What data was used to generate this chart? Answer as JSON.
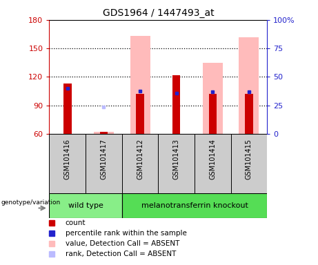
{
  "title": "GDS1964 / 1447493_at",
  "samples": [
    "GSM101416",
    "GSM101417",
    "GSM101412",
    "GSM101413",
    "GSM101414",
    "GSM101415"
  ],
  "ylim_left": [
    60,
    180
  ],
  "ylim_right": [
    0,
    100
  ],
  "yticks_left": [
    60,
    90,
    120,
    150,
    180
  ],
  "yticks_right": [
    0,
    25,
    50,
    75,
    100
  ],
  "yticklabels_right": [
    "0",
    "25",
    "50",
    "75",
    "100%"
  ],
  "bar_bottom": 60,
  "red_bars": {
    "GSM101416": 113,
    "GSM101417": 62,
    "GSM101412": 102,
    "GSM101413": 122,
    "GSM101414": 102,
    "GSM101415": 102
  },
  "pink_bars": {
    "GSM101416": null,
    "GSM101417": 62,
    "GSM101412": 163,
    "GSM101413": null,
    "GSM101414": 135,
    "GSM101415": 162
  },
  "blue_markers": {
    "GSM101416": 108,
    "GSM101417": null,
    "GSM101412": 105,
    "GSM101413": 103,
    "GSM101414": 104,
    "GSM101415": 104
  },
  "lightblue_markers": {
    "GSM101416": null,
    "GSM101417": 88,
    "GSM101412": 105,
    "GSM101413": null,
    "GSM101414": 104,
    "GSM101415": 104
  },
  "colors": {
    "red": "#cc0000",
    "blue": "#2222cc",
    "pink": "#ffbbbb",
    "lightblue": "#bbbbff",
    "wild_type_bg": "#88ee88",
    "knockout_bg": "#55dd55",
    "sample_box_bg": "#cccccc",
    "left_axis_color": "#cc0000",
    "right_axis_color": "#2222cc"
  },
  "legend_items": [
    {
      "label": "count",
      "color": "#cc0000"
    },
    {
      "label": "percentile rank within the sample",
      "color": "#2222cc"
    },
    {
      "label": "value, Detection Call = ABSENT",
      "color": "#ffbbbb"
    },
    {
      "label": "rank, Detection Call = ABSENT",
      "color": "#bbbbff"
    }
  ]
}
